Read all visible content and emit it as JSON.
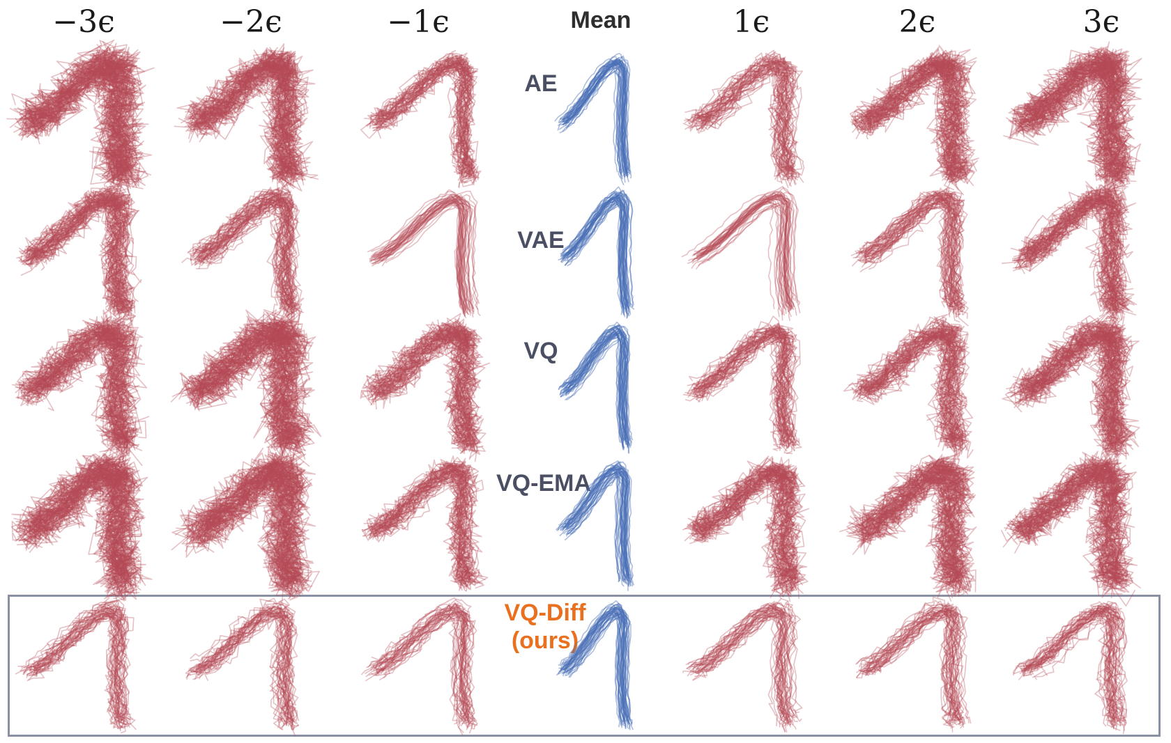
{
  "figure": {
    "columns": [
      "−3ϵ",
      "−2ϵ",
      "−1ϵ",
      "Mean",
      "1ϵ",
      "2ϵ",
      "3ϵ"
    ],
    "rows": [
      {
        "label": "AE",
        "sublabel": ""
      },
      {
        "label": "VAE",
        "sublabel": ""
      },
      {
        "label": "VQ",
        "sublabel": ""
      },
      {
        "label": "VQ-EMA",
        "sublabel": ""
      },
      {
        "label": "VQ-Diff",
        "sublabel": "(ours)"
      }
    ],
    "highlighted_row": "VQ-Diff",
    "colors": {
      "mean_trajectories": "#4a6fb5",
      "perturbed_trajectories": "#b54a55",
      "ours_label": "#e8701e",
      "method_label": "#4a4f63",
      "highlight_box": "#8a90a3"
    }
  }
}
